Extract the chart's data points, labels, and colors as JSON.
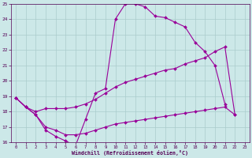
{
  "bg_color": "#cce8e8",
  "grid_color": "#aacccc",
  "line_color": "#990099",
  "xlabel": "Windchill (Refroidissement éolien,°C)",
  "xlim": [
    -0.5,
    23.5
  ],
  "ylim": [
    16,
    25
  ],
  "xticks": [
    0,
    1,
    2,
    3,
    4,
    5,
    6,
    7,
    8,
    9,
    10,
    11,
    12,
    13,
    14,
    15,
    16,
    17,
    18,
    19,
    20,
    21,
    22,
    23
  ],
  "yticks": [
    16,
    17,
    18,
    19,
    20,
    21,
    22,
    23,
    24,
    25
  ],
  "line1_x": [
    0,
    1,
    2,
    3,
    4,
    5,
    6,
    7,
    8,
    9,
    10,
    11,
    12,
    13,
    14,
    15,
    16,
    17,
    18,
    19,
    20,
    21
  ],
  "line1_y": [
    18.9,
    18.3,
    17.8,
    16.8,
    16.4,
    16.1,
    15.8,
    17.5,
    19.2,
    19.5,
    24.0,
    25.0,
    25.0,
    24.8,
    24.2,
    24.1,
    23.8,
    23.5,
    22.5,
    21.9,
    21.0,
    18.5
  ],
  "line2_x": [
    0,
    1,
    2,
    3,
    4,
    5,
    6,
    7,
    8,
    9,
    10,
    11,
    12,
    13,
    14,
    15,
    16,
    17,
    18,
    19,
    20,
    21,
    22
  ],
  "line2_y": [
    18.9,
    18.3,
    18.0,
    18.2,
    18.2,
    18.2,
    18.3,
    18.5,
    18.8,
    19.2,
    19.6,
    19.9,
    20.1,
    20.3,
    20.5,
    20.7,
    20.8,
    21.1,
    21.3,
    21.5,
    21.9,
    22.2,
    17.8
  ],
  "line3_x": [
    0,
    1,
    2,
    3,
    4,
    5,
    6,
    7,
    8,
    9,
    10,
    11,
    12,
    13,
    14,
    15,
    16,
    17,
    18,
    19,
    20,
    21,
    22
  ],
  "line3_y": [
    18.9,
    18.3,
    17.8,
    17.0,
    16.8,
    16.5,
    16.5,
    16.6,
    16.8,
    17.0,
    17.2,
    17.3,
    17.4,
    17.5,
    17.6,
    17.7,
    17.8,
    17.9,
    18.0,
    18.1,
    18.2,
    18.3,
    17.8
  ]
}
